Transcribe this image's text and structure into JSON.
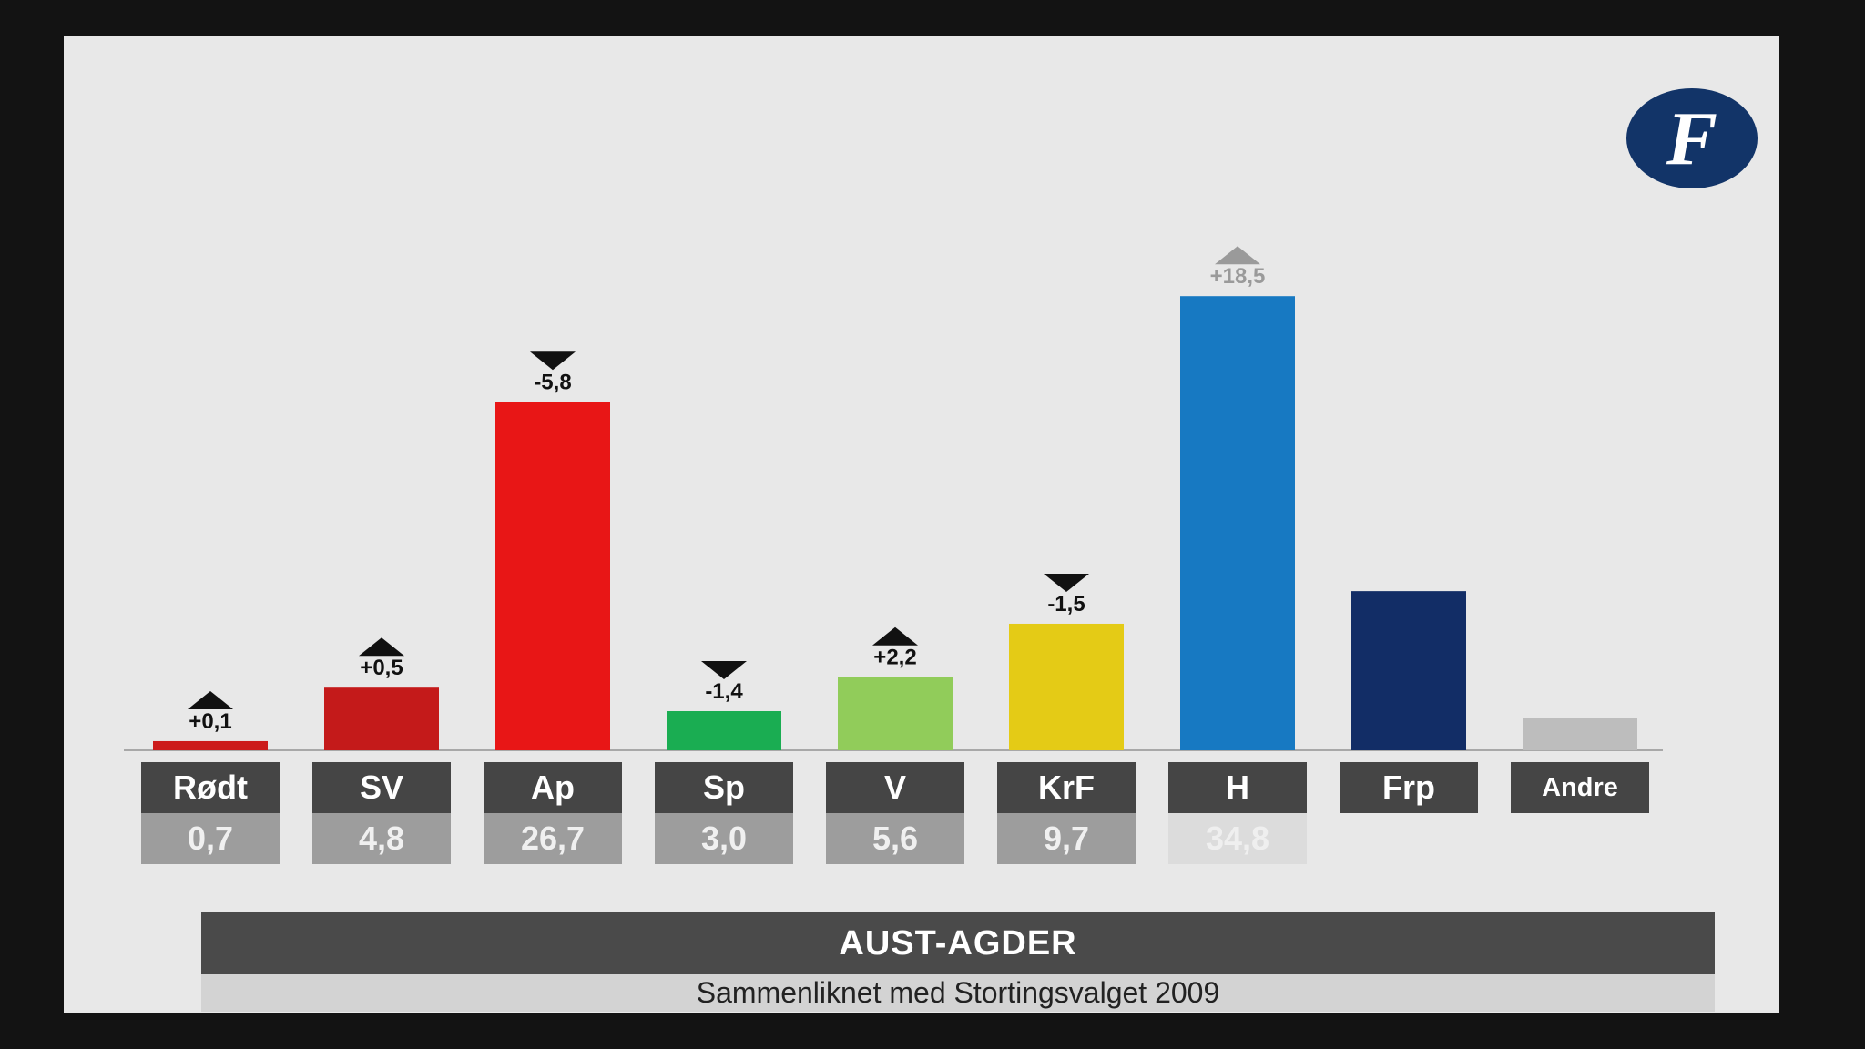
{
  "colors": {
    "panel_background": "#e8e8e8",
    "frame": "#131313",
    "label_box": "#454545",
    "value_box": "#9d9d9d",
    "logo": "#123468"
  },
  "logo": {
    "icon": "fvn-logo-icon",
    "glyph": "F"
  },
  "chart_data": {
    "type": "bar",
    "categories": [
      "Rødt",
      "SV",
      "Ap",
      "Sp",
      "V",
      "KrF",
      "H",
      "Frp",
      "Andre"
    ],
    "values": [
      0.7,
      4.8,
      26.7,
      3.0,
      5.6,
      9.7,
      34.8,
      12.2,
      2.5
    ],
    "value_labels": [
      "0,7",
      "4,8",
      "26,7",
      "3,0",
      "5,6",
      "9,7",
      "34,8",
      "",
      ""
    ],
    "changes": [
      "+0,1",
      "+0,5",
      "-5,8",
      "-1,4",
      "+2,2",
      "-1,5",
      "+18,5",
      "",
      ""
    ],
    "change_direction": [
      "up",
      "up",
      "down",
      "down",
      "up",
      "down",
      "up",
      "",
      ""
    ],
    "bar_colors": [
      "#cc1b1b",
      "#c41a1a",
      "#e81616",
      "#1aad52",
      "#91cc5a",
      "#e4cb16",
      "#1779c2",
      "#122d66",
      "#bdbdbd"
    ],
    "ylim": [
      0,
      36
    ],
    "title": "AUST-AGDER",
    "subtitle": "Sammenliknet med Stortingsvalget 2009",
    "grid": false
  }
}
